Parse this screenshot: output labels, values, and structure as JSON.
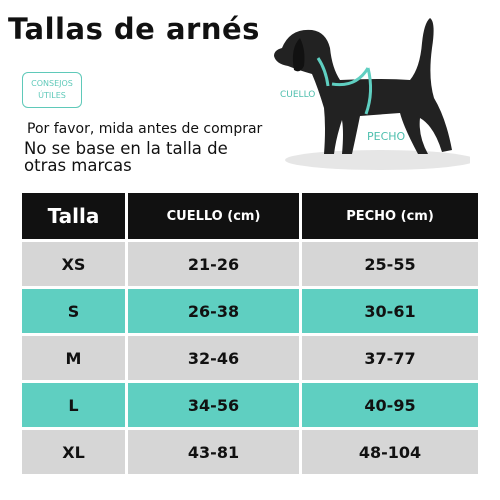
{
  "header": {
    "title": "Tallas de arnés",
    "badge": [
      "CONSEJOS",
      "ÚTILES"
    ],
    "notes": [
      "Por favor, mida antes de comprar",
      "No se base en la talla de otras marcas"
    ]
  },
  "diagram": {
    "labels": [
      "CUELLO",
      "PECHO"
    ]
  },
  "table": {
    "headers": [
      "Talla",
      "CUELLO (cm)",
      "PECHO (cm)"
    ],
    "rows": [
      [
        "XS",
        "21-26",
        "25-55"
      ],
      [
        "S",
        "26-38",
        "30-61"
      ],
      [
        "M",
        "32-46",
        "37-77"
      ],
      [
        "L",
        "34-56",
        "40-95"
      ],
      [
        "XL",
        "43-81",
        "48-104"
      ]
    ]
  }
}
